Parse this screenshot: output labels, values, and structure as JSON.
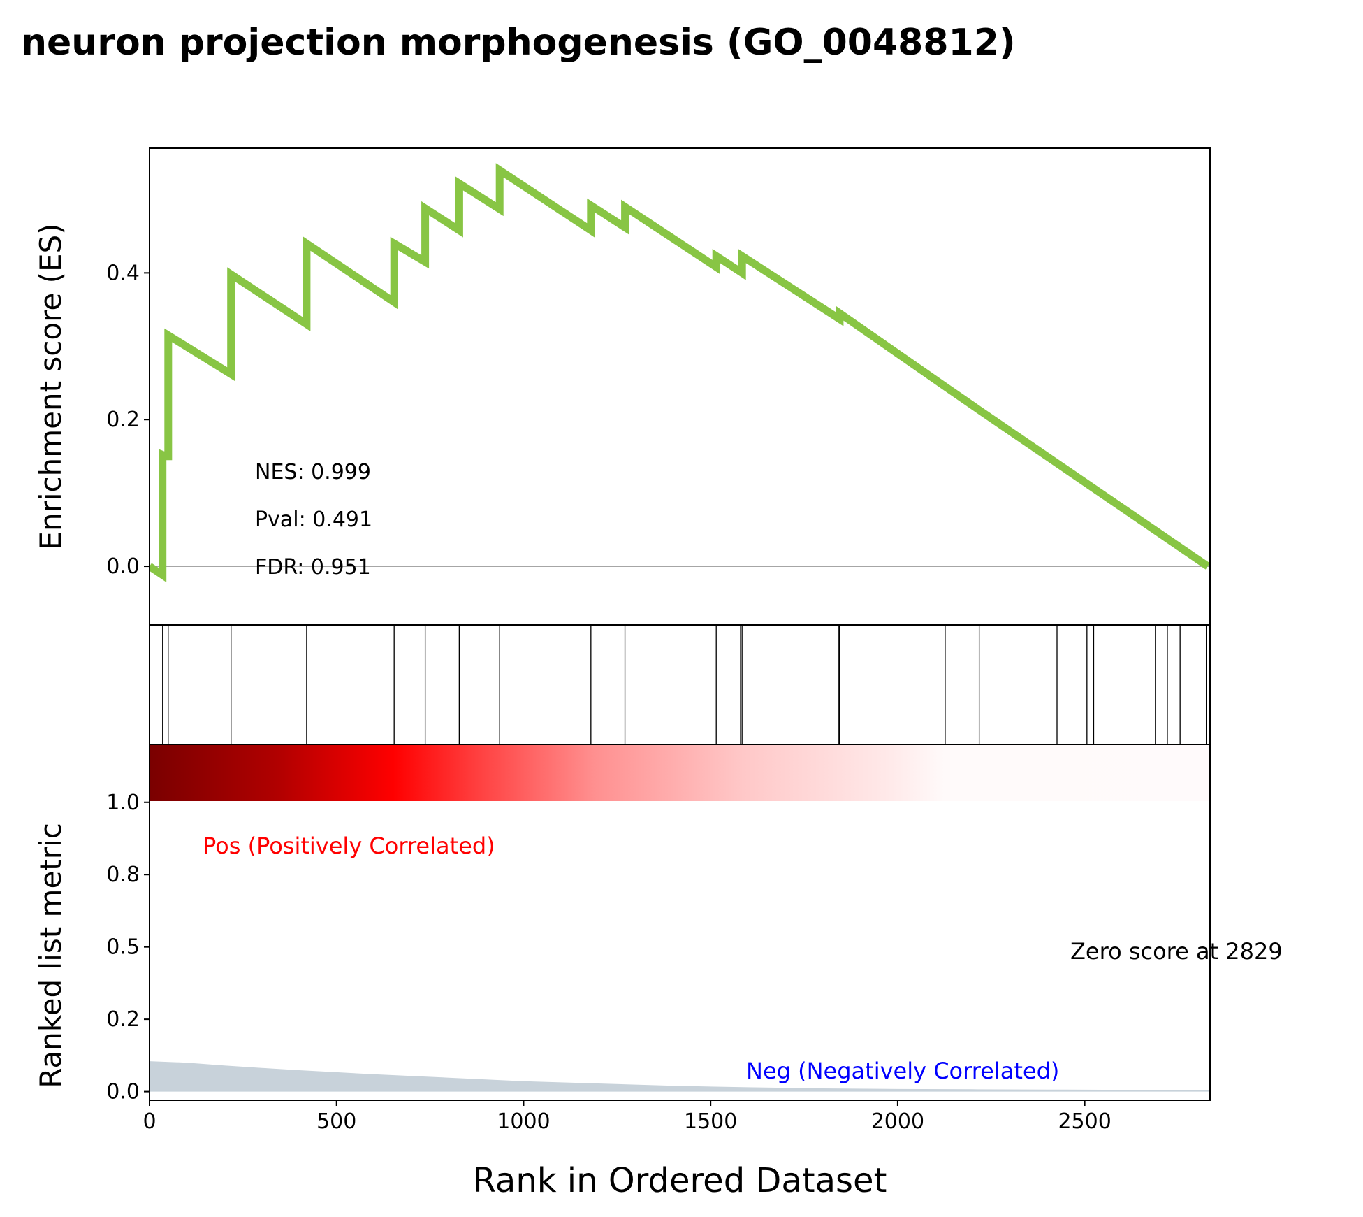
{
  "chart_data": {
    "type": "line",
    "title": "neuron projection morphogenesis (GO_0048812)",
    "xlabel": "Rank in Ordered Dataset",
    "xlim": [
      0,
      2835
    ],
    "x_ticks": [
      "0",
      "500",
      "1000",
      "1500",
      "2000",
      "2500"
    ],
    "es_panel": {
      "ylabel": "Enrichment score (ES)",
      "ylim": [
        -0.08,
        0.57
      ],
      "y_ticks": [
        "0.0",
        "0.2",
        "0.4"
      ],
      "line_color": "#88c544",
      "series": {
        "x": [
          0,
          35,
          35,
          45,
          45,
          50,
          50,
          218,
          218,
          420,
          420,
          654,
          654,
          737,
          737,
          828,
          828,
          936,
          936,
          1180,
          1180,
          1271,
          1271,
          1515,
          1515,
          1584,
          1584,
          1845,
          1845,
          2127,
          2127,
          2218,
          2218,
          2829
        ],
        "y": [
          0.0,
          -0.012,
          0.152,
          0.15,
          0.15,
          0.15,
          0.315,
          0.262,
          0.398,
          0.33,
          0.44,
          0.36,
          0.44,
          0.415,
          0.488,
          0.458,
          0.522,
          0.487,
          0.54,
          0.458,
          0.492,
          0.462,
          0.49,
          0.408,
          0.423,
          0.4,
          0.423,
          0.337,
          0.345,
          0.245,
          0.245,
          0.213,
          0.213,
          0.0
        ]
      },
      "stats": {
        "nes": "NES: 0.999",
        "pval": "Pval: 0.491",
        "fdr": "FDR: 0.951"
      }
    },
    "hits_panel": {
      "hit_ranks": [
        35,
        50,
        218,
        420,
        654,
        737,
        828,
        936,
        1180,
        1271,
        1515,
        1580,
        1584,
        1843,
        1845,
        2127,
        2218,
        2426,
        2506,
        2524,
        2689,
        2721,
        2755,
        2825
      ]
    },
    "metric_panel": {
      "ylabel": "Ranked list metric",
      "ylim": [
        -0.03,
        1.2
      ],
      "y_ticks": [
        "0.0",
        "0.2",
        "0.5",
        "0.8",
        "1.0"
      ],
      "pos_label": "Pos (Positively Correlated)",
      "neg_label": "Neg (Negatively Correlated)",
      "zero_label": "Zero score at 2829",
      "pos_color": "#ff0000",
      "neg_color": "#0000ff",
      "fill_color": "#c8d2da",
      "metric_curve": {
        "x": [
          0,
          100,
          200,
          300,
          400,
          500,
          600,
          700,
          800,
          900,
          1000,
          1200,
          1400,
          1600,
          1800,
          2000,
          2200,
          2400,
          2600,
          2835
        ],
        "y": [
          0.105,
          0.1,
          0.09,
          0.082,
          0.074,
          0.067,
          0.06,
          0.054,
          0.048,
          0.042,
          0.036,
          0.028,
          0.02,
          0.015,
          0.011,
          0.009,
          0.008,
          0.007,
          0.006,
          0.005
        ]
      }
    }
  }
}
